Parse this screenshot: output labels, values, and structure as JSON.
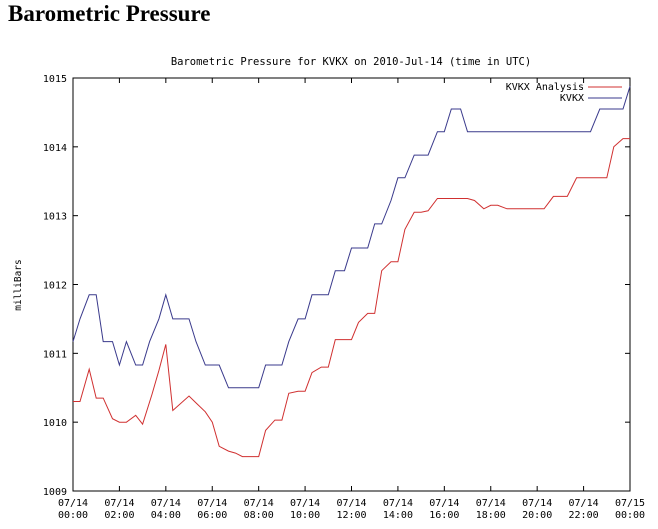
{
  "page": {
    "heading": "Barometric Pressure"
  },
  "chart_data": {
    "type": "line",
    "title": "Barometric Pressure for KVKX on 2010-Jul-14 (time in UTC)",
    "xlabel": "",
    "ylabel": "milliBars",
    "ylim": [
      1009,
      1015
    ],
    "xlim": [
      0,
      24
    ],
    "y_ticks": [
      "1009",
      "1010",
      "1011",
      "1012",
      "1013",
      "1014",
      "1015"
    ],
    "x_ticks": [
      {
        "date": "07/14",
        "time": "00:00"
      },
      {
        "date": "07/14",
        "time": "02:00"
      },
      {
        "date": "07/14",
        "time": "04:00"
      },
      {
        "date": "07/14",
        "time": "06:00"
      },
      {
        "date": "07/14",
        "time": "08:00"
      },
      {
        "date": "07/14",
        "time": "10:00"
      },
      {
        "date": "07/14",
        "time": "12:00"
      },
      {
        "date": "07/14",
        "time": "14:00"
      },
      {
        "date": "07/14",
        "time": "16:00"
      },
      {
        "date": "07/14",
        "time": "18:00"
      },
      {
        "date": "07/14",
        "time": "20:00"
      },
      {
        "date": "07/14",
        "time": "22:00"
      },
      {
        "date": "07/15",
        "time": "00:00"
      }
    ],
    "legend_position": "top-right",
    "grid": false,
    "series": [
      {
        "name": "KVKX Analysis",
        "color": "#d03030",
        "x": [
          0.0,
          0.3,
          0.7,
          1.0,
          1.3,
          1.7,
          2.0,
          2.3,
          2.7,
          3.0,
          3.4,
          3.7,
          4.0,
          4.3,
          5.0,
          5.3,
          5.7,
          6.0,
          6.3,
          6.7,
          7.0,
          7.3,
          7.7,
          8.0,
          8.3,
          8.7,
          9.0,
          9.3,
          9.7,
          10.0,
          10.3,
          10.7,
          11.0,
          11.3,
          11.7,
          12.0,
          12.3,
          12.7,
          13.0,
          13.3,
          13.7,
          14.0,
          14.3,
          14.7,
          15.0,
          15.3,
          15.7,
          16.0,
          16.3,
          16.7,
          17.0,
          17.3,
          17.7,
          18.0,
          18.3,
          18.7,
          19.0,
          19.3,
          19.7,
          20.0,
          20.3,
          20.7,
          21.0,
          21.3,
          21.7,
          22.0,
          22.3,
          22.7,
          23.0,
          23.3,
          23.7,
          24.0
        ],
        "y": [
          1010.3,
          1010.3,
          1010.77,
          1010.35,
          1010.35,
          1010.05,
          1010.0,
          1010.0,
          1010.1,
          1009.97,
          1010.4,
          1010.75,
          1011.13,
          1010.17,
          1010.38,
          1010.28,
          1010.15,
          1010.0,
          1009.65,
          1009.58,
          1009.55,
          1009.5,
          1009.5,
          1009.5,
          1009.88,
          1010.03,
          1010.03,
          1010.42,
          1010.45,
          1010.45,
          1010.72,
          1010.8,
          1010.8,
          1011.2,
          1011.2,
          1011.2,
          1011.45,
          1011.58,
          1011.58,
          1012.2,
          1012.33,
          1012.33,
          1012.8,
          1013.05,
          1013.05,
          1013.07,
          1013.25,
          1013.25,
          1013.25,
          1013.25,
          1013.25,
          1013.22,
          1013.1,
          1013.15,
          1013.15,
          1013.1,
          1013.1,
          1013.1,
          1013.1,
          1013.1,
          1013.1,
          1013.28,
          1013.28,
          1013.28,
          1013.55,
          1013.55,
          1013.55,
          1013.55,
          1013.55,
          1014.0,
          1014.12,
          1014.12
        ]
      },
      {
        "name": "KVKX",
        "color": "#3a3a8c",
        "x": [
          0.0,
          0.3,
          0.7,
          1.0,
          1.3,
          1.7,
          2.0,
          2.3,
          2.7,
          3.0,
          3.3,
          3.7,
          4.0,
          4.3,
          5.0,
          5.3,
          5.7,
          6.0,
          6.3,
          6.7,
          7.0,
          7.3,
          7.7,
          8.0,
          8.3,
          8.7,
          9.0,
          9.3,
          9.7,
          10.0,
          10.3,
          10.7,
          11.0,
          11.3,
          11.7,
          12.0,
          12.3,
          12.7,
          13.0,
          13.3,
          13.7,
          14.0,
          14.3,
          14.7,
          15.0,
          15.3,
          15.7,
          16.0,
          16.3,
          16.7,
          17.0,
          17.3,
          17.7,
          18.0,
          18.3,
          18.7,
          19.0,
          19.3,
          19.7,
          20.0,
          20.3,
          20.7,
          21.0,
          21.3,
          21.7,
          22.0,
          22.3,
          22.7,
          23.0,
          23.3,
          23.7,
          24.0
        ],
        "y": [
          1011.17,
          1011.5,
          1011.85,
          1011.85,
          1011.17,
          1011.17,
          1010.83,
          1011.17,
          1010.83,
          1010.83,
          1011.17,
          1011.5,
          1011.85,
          1011.5,
          1011.5,
          1011.17,
          1010.83,
          1010.83,
          1010.83,
          1010.5,
          1010.5,
          1010.5,
          1010.5,
          1010.5,
          1010.83,
          1010.83,
          1010.83,
          1011.17,
          1011.5,
          1011.5,
          1011.85,
          1011.85,
          1011.85,
          1012.2,
          1012.2,
          1012.53,
          1012.53,
          1012.53,
          1012.88,
          1012.88,
          1013.22,
          1013.55,
          1013.55,
          1013.88,
          1013.88,
          1013.88,
          1014.22,
          1014.22,
          1014.55,
          1014.55,
          1014.22,
          1014.22,
          1014.22,
          1014.22,
          1014.22,
          1014.22,
          1014.22,
          1014.22,
          1014.22,
          1014.22,
          1014.22,
          1014.22,
          1014.22,
          1014.22,
          1014.22,
          1014.22,
          1014.22,
          1014.55,
          1014.55,
          1014.55,
          1014.55,
          1014.88
        ]
      }
    ]
  }
}
